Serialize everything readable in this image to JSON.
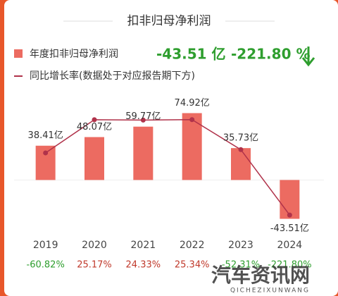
{
  "chart_data": {
    "type": "bar-line",
    "title": "扣非归母净利润",
    "headline_value": "-43.51 亿",
    "headline_change": "-221.80 %",
    "categories": [
      "2019",
      "2020",
      "2021",
      "2022",
      "2023",
      "2024"
    ],
    "ylim": [
      -51,
      99
    ],
    "y2lim": [
      -249,
      98
    ],
    "positive_color": "#c0392b",
    "negative_color": "#2e9e2e",
    "series": [
      {
        "name": "年度扣非归母净利润",
        "color": "#ec6b61",
        "values": [
          38.41,
          48.07,
          59.77,
          74.92,
          35.73,
          -43.51
        ],
        "value_labels": [
          "38.41亿",
          "48.07亿",
          "59.77亿",
          "74.92亿",
          "35.73亿",
          "-43.51亿"
        ]
      },
      {
        "name": "同比增长率(数据处于对应报告期下方)",
        "color": "#b0324a",
        "axis": "y2",
        "values": [
          -60.82,
          25.17,
          24.33,
          25.34,
          -52.31,
          -221.8
        ],
        "value_labels": [
          "-60.82%",
          "25.17%",
          "24.33%",
          "25.34%",
          "-52.31%",
          "-221.80%"
        ]
      }
    ],
    "watermark": "汽车资讯网",
    "watermark_sub": "QICHEZIXUNWANG"
  }
}
